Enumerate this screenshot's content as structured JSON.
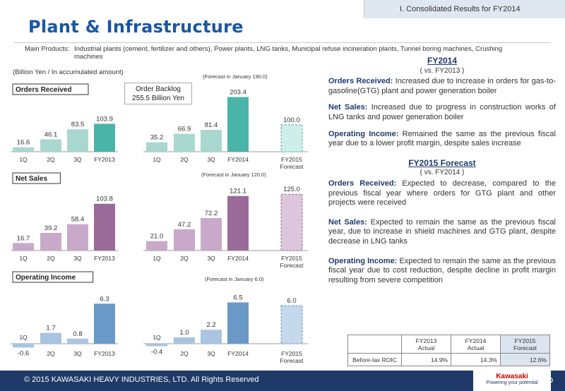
{
  "header": {
    "section": "I. Consolidated Results for FY2014"
  },
  "title": "Plant & Infrastructure",
  "products": {
    "label": "Main Products:",
    "text": "Industrial plants (cement, fertilizer and others), Power plants, LNG tanks, Municipal refuse incineration plants, Tunnel boring machines, Crushing machines"
  },
  "unit_note": "(Billion Yen / In accumulated amount)",
  "backlog": {
    "line1": "Order Backlog",
    "line2": "255.5 Billion Yen"
  },
  "chart_data": [
    {
      "type": "bar",
      "title": "Orders Received",
      "forecast_note": "(Forecast in January 190.0)",
      "groups": [
        {
          "categories": [
            "1Q",
            "2Q",
            "3Q",
            "FY2013"
          ],
          "values": [
            16.6,
            46.1,
            83.5,
            103.9
          ]
        },
        {
          "categories": [
            "1Q",
            "2Q",
            "3Q",
            "FY2014"
          ],
          "values": [
            35.2,
            66.9,
            81.4,
            203.4
          ]
        },
        {
          "categories": [
            "FY2015 Forecast"
          ],
          "values": [
            100.0
          ],
          "forecast": true
        }
      ],
      "ylim": [
        0,
        210
      ],
      "colors": {
        "light": "#a8d8d0",
        "dark": "#4ab4a8",
        "forecast": "#cfeeea",
        "forecast_border": "#4ab4a8"
      }
    },
    {
      "type": "bar",
      "title": "Net Sales",
      "forecast_note": "(Forecast in January 120.0)",
      "groups": [
        {
          "categories": [
            "1Q",
            "2Q",
            "3Q",
            "FY2013"
          ],
          "values": [
            16.7,
            39.2,
            58.4,
            103.8
          ]
        },
        {
          "categories": [
            "1Q",
            "2Q",
            "3Q",
            "FY2014"
          ],
          "values": [
            21.0,
            47.2,
            72.2,
            121.1
          ]
        },
        {
          "categories": [
            "FY2015 Forecast"
          ],
          "values": [
            125.0
          ],
          "forecast": true
        }
      ],
      "ylim": [
        0,
        130
      ],
      "colors": {
        "light": "#c9a9c9",
        "dark": "#9a6a99",
        "forecast": "#dcc6dc",
        "forecast_border": "#9a6a99"
      }
    },
    {
      "type": "bar",
      "title": "Operating Income",
      "forecast_note": "(Forecast in January 6.0)",
      "groups": [
        {
          "categories": [
            "1Q",
            "2Q",
            "3Q",
            "FY2013"
          ],
          "values": [
            -0.6,
            1.7,
            0.8,
            6.3
          ]
        },
        {
          "categories": [
            "1Q",
            "2Q",
            "3Q",
            "FY2014"
          ],
          "values": [
            -0.4,
            1.0,
            2.2,
            6.5
          ]
        },
        {
          "categories": [
            "FY2015 Forecast"
          ],
          "values": [
            6.0
          ],
          "forecast": true
        }
      ],
      "ylim": [
        -1,
        7
      ],
      "colors": {
        "light": "#a9c4e0",
        "dark": "#6a99c8",
        "forecast": "#c6d8ec",
        "forecast_border": "#6a99c8"
      }
    }
  ],
  "right": {
    "fy2014": {
      "heading": "FY2014",
      "sub": "( vs.  FY2013 )",
      "items": [
        {
          "label": "Orders Received:",
          "text": " Increased due to increase in orders for gas-to-gasoline(GTG) plant and power generation boiler"
        },
        {
          "label": "Net Sales:",
          "text": " Increased due to progress in construction works of LNG tanks and power generation boiler"
        },
        {
          "label": "Operating Income:",
          "text": " Remained the same as the previous fiscal year due to a lower profit margin, despite sales increase"
        }
      ]
    },
    "fy2015": {
      "heading": "FY2015 Forecast",
      "sub": "( vs.  FY2014 )",
      "items": [
        {
          "label": "Orders Received:",
          "text": "  Expected to decrease, compared to the previous fiscal year where orders for GTG plant and other projects were received"
        },
        {
          "label": "Net Sales:",
          "text": "  Expected to remain the same  as the previous fiscal year, due to increase in shield machines and GTG plant, despite decrease in LNG tanks"
        },
        {
          "label": "Operating Income:",
          "text": "  Expected to remain the same as the previous fiscal year due to cost reduction, despite decline in profit margin resulting from severe competition"
        }
      ]
    }
  },
  "roic": {
    "headers": [
      [
        "FY2013",
        "Actual"
      ],
      [
        "FY2014",
        "Actual"
      ],
      [
        "FY2015",
        "Forecast"
      ]
    ],
    "row_label": "Before-tax ROIC",
    "values": [
      "14.9%",
      "14.3%",
      "12.6%"
    ]
  },
  "footer": {
    "copyright": "© 2015 KAWASAKI HEAVY INDUSTRIES, LTD. All Rights Reserved",
    "page": "10",
    "logo": "Kawasaki",
    "tagline": "Powering your potential"
  }
}
